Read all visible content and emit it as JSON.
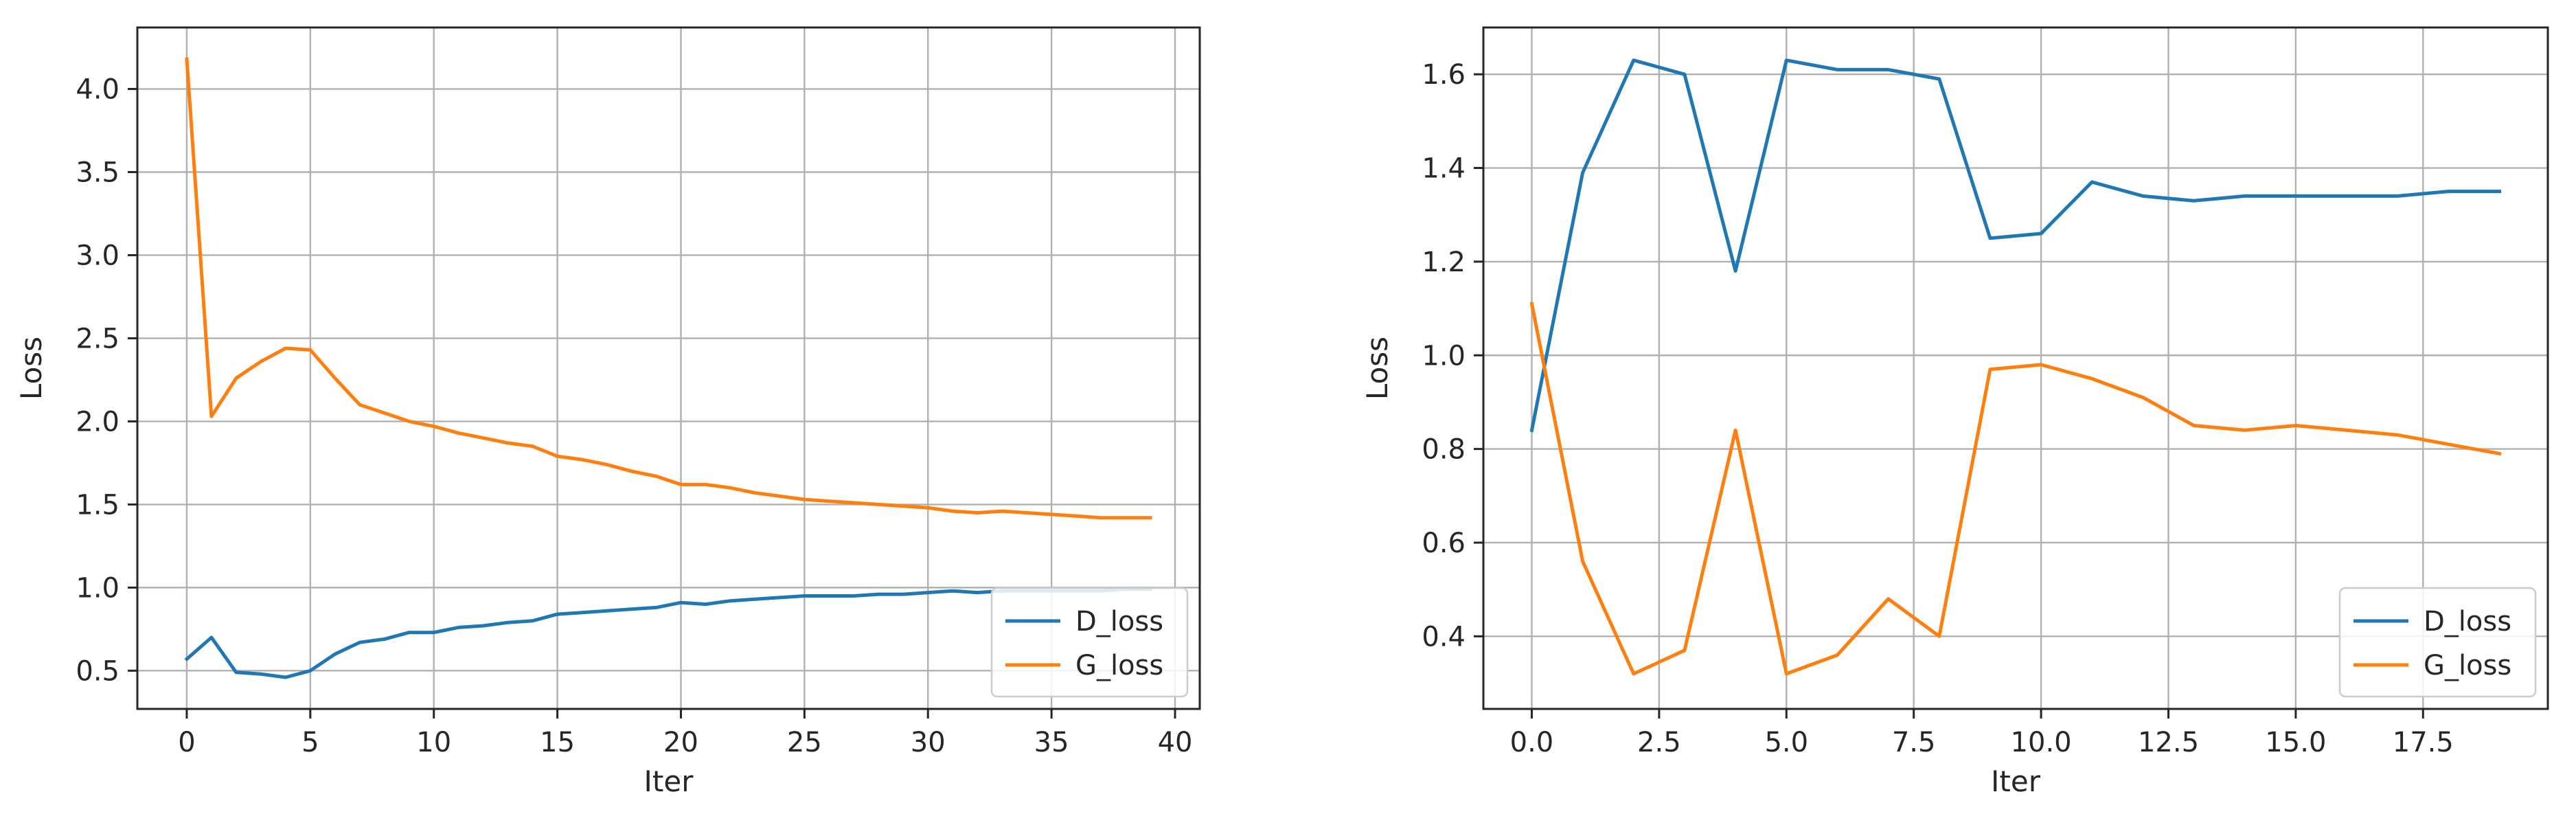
{
  "colors": {
    "D_loss": "#1f77b4",
    "G_loss": "#ff7f0e",
    "grid": "#b0b0b0",
    "axis": "#262626"
  },
  "chart_data": [
    {
      "type": "line",
      "xlabel": "Iter",
      "ylabel": "Loss",
      "xlim": [
        -2,
        41
      ],
      "ylim": [
        0.27,
        4.37
      ],
      "xticks": [
        0,
        5,
        10,
        15,
        20,
        25,
        30,
        35,
        40
      ],
      "xtick_labels": [
        "0",
        "5",
        "10",
        "15",
        "20",
        "25",
        "30",
        "35",
        "40"
      ],
      "yticks": [
        0.5,
        1.0,
        1.5,
        2.0,
        2.5,
        3.0,
        3.5,
        4.0
      ],
      "ytick_labels": [
        "0.5",
        "1.0",
        "1.5",
        "2.0",
        "2.5",
        "3.0",
        "3.5",
        "4.0"
      ],
      "grid": true,
      "legend_position": "lower-right",
      "x": [
        0,
        1,
        2,
        3,
        4,
        5,
        6,
        7,
        8,
        9,
        10,
        11,
        12,
        13,
        14,
        15,
        16,
        17,
        18,
        19,
        20,
        21,
        22,
        23,
        24,
        25,
        26,
        27,
        28,
        29,
        30,
        31,
        32,
        33,
        34,
        35,
        36,
        37,
        38,
        39
      ],
      "series": [
        {
          "name": "D_loss",
          "color": "#1f77b4",
          "values": [
            0.57,
            0.7,
            0.49,
            0.48,
            0.46,
            0.5,
            0.6,
            0.67,
            0.69,
            0.73,
            0.73,
            0.76,
            0.77,
            0.79,
            0.8,
            0.84,
            0.85,
            0.86,
            0.87,
            0.88,
            0.91,
            0.9,
            0.92,
            0.93,
            0.94,
            0.95,
            0.95,
            0.95,
            0.96,
            0.96,
            0.97,
            0.98,
            0.97,
            0.98,
            0.98,
            0.98,
            0.98,
            0.98,
            0.99,
            0.99
          ]
        },
        {
          "name": "G_loss",
          "color": "#ff7f0e",
          "values": [
            4.18,
            2.03,
            2.26,
            2.36,
            2.44,
            2.43,
            2.26,
            2.1,
            2.05,
            2.0,
            1.97,
            1.93,
            1.9,
            1.87,
            1.85,
            1.79,
            1.77,
            1.74,
            1.7,
            1.67,
            1.62,
            1.62,
            1.6,
            1.57,
            1.55,
            1.53,
            1.52,
            1.51,
            1.5,
            1.49,
            1.48,
            1.46,
            1.45,
            1.46,
            1.45,
            1.44,
            1.43,
            1.42,
            1.42,
            1.42
          ]
        }
      ]
    },
    {
      "type": "line",
      "xlabel": "Iter",
      "ylabel": "Loss",
      "xlim": [
        -0.95,
        19.95
      ],
      "ylim": [
        0.245,
        1.7
      ],
      "xticks": [
        0,
        2.5,
        5,
        7.5,
        10,
        12.5,
        15,
        17.5
      ],
      "xtick_labels": [
        "0.0",
        "2.5",
        "5.0",
        "7.5",
        "10.0",
        "12.5",
        "15.0",
        "17.5"
      ],
      "yticks": [
        0.4,
        0.6,
        0.8,
        1.0,
        1.2,
        1.4,
        1.6
      ],
      "ytick_labels": [
        "0.4",
        "0.6",
        "0.8",
        "1.0",
        "1.2",
        "1.4",
        "1.6"
      ],
      "grid": true,
      "legend_position": "lower-right",
      "x": [
        0,
        1,
        2,
        3,
        4,
        5,
        6,
        7,
        8,
        9,
        10,
        11,
        12,
        13,
        14,
        15,
        16,
        17,
        18,
        19
      ],
      "series": [
        {
          "name": "D_loss",
          "color": "#1f77b4",
          "values": [
            0.84,
            1.39,
            1.63,
            1.6,
            1.18,
            1.63,
            1.61,
            1.61,
            1.59,
            1.25,
            1.26,
            1.37,
            1.34,
            1.33,
            1.34,
            1.34,
            1.34,
            1.34,
            1.35,
            1.35
          ]
        },
        {
          "name": "G_loss",
          "color": "#ff7f0e",
          "values": [
            1.11,
            0.56,
            0.32,
            0.37,
            0.84,
            0.32,
            0.36,
            0.48,
            0.4,
            0.97,
            0.98,
            0.95,
            0.91,
            0.85,
            0.84,
            0.85,
            0.84,
            0.83,
            0.81,
            0.79
          ]
        }
      ]
    }
  ]
}
